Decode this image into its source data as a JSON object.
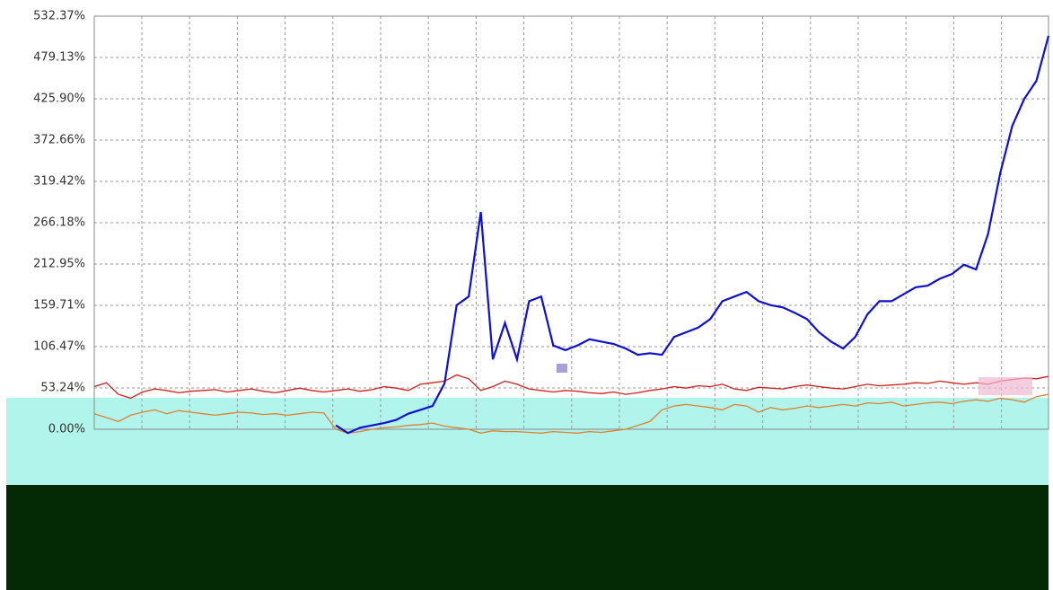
{
  "chart_data": {
    "type": "line",
    "ylim": [
      0,
      532.37
    ],
    "yticks": [
      {
        "value": 0,
        "label": "0.00%"
      },
      {
        "value": 53.24,
        "label": "53.24%"
      },
      {
        "value": 106.47,
        "label": "106.47%"
      },
      {
        "value": 159.71,
        "label": "159.71%"
      },
      {
        "value": 212.95,
        "label": "212.95%"
      },
      {
        "value": 266.18,
        "label": "266.18%"
      },
      {
        "value": 319.42,
        "label": "319.42%"
      },
      {
        "value": 372.66,
        "label": "372.66%"
      },
      {
        "value": 425.9,
        "label": "425.90%"
      },
      {
        "value": 479.13,
        "label": "479.13%"
      },
      {
        "value": 532.37,
        "label": "532.37%"
      }
    ],
    "grid": true,
    "series": [
      {
        "color": "#e08030",
        "values": [
          20,
          15,
          10,
          18,
          22,
          25,
          20,
          24,
          22,
          20,
          18,
          20,
          22,
          21,
          19,
          20,
          18,
          20,
          22,
          21,
          0,
          -5,
          -3,
          0,
          2,
          3,
          5,
          6,
          8,
          4,
          2,
          0,
          -5,
          -2,
          -3,
          -3,
          -4,
          -5,
          -3,
          -4,
          -5,
          -3,
          -4,
          -2,
          0,
          5,
          10,
          25,
          30,
          32,
          30,
          28,
          25,
          32,
          30,
          22,
          28,
          25,
          27,
          30,
          28,
          30,
          32,
          30,
          34,
          33,
          35,
          30,
          32,
          34,
          35,
          33,
          36,
          38,
          36,
          40,
          38,
          35,
          42,
          45
        ]
      },
      {
        "color": "#d02020",
        "values": [
          55,
          60,
          45,
          40,
          48,
          52,
          50,
          47,
          49,
          50,
          51,
          48,
          50,
          52,
          49,
          47,
          50,
          53,
          50,
          48,
          50,
          52,
          49,
          51,
          55,
          53,
          50,
          58,
          60,
          62,
          70,
          65,
          50,
          55,
          62,
          58,
          52,
          50,
          48,
          50,
          49,
          47,
          46,
          48,
          45,
          47,
          50,
          52,
          55,
          53,
          56,
          55,
          58,
          52,
          50,
          54,
          53,
          52,
          55,
          57,
          55,
          53,
          52,
          55,
          58,
          56,
          57,
          58,
          60,
          59,
          62,
          60,
          58,
          60,
          58,
          62,
          64,
          66,
          65,
          68
        ]
      },
      {
        "color": "#1010d0",
        "values": [
          null,
          null,
          null,
          null,
          null,
          null,
          null,
          null,
          null,
          null,
          null,
          null,
          null,
          null,
          null,
          null,
          null,
          null,
          null,
          null,
          5,
          -5,
          2,
          5,
          8,
          12,
          20,
          25,
          30,
          59,
          160,
          171,
          280,
          90,
          137,
          90,
          165,
          171,
          108,
          102,
          108,
          116,
          113,
          110,
          104,
          96,
          98,
          96,
          119,
          125,
          131,
          142,
          165,
          171,
          177,
          165,
          160,
          157,
          150,
          142,
          125,
          113,
          104,
          119,
          148,
          165,
          165,
          174,
          183,
          185,
          194,
          200,
          212,
          206,
          252,
          330,
          391,
          426,
          449,
          507
        ]
      }
    ]
  }
}
